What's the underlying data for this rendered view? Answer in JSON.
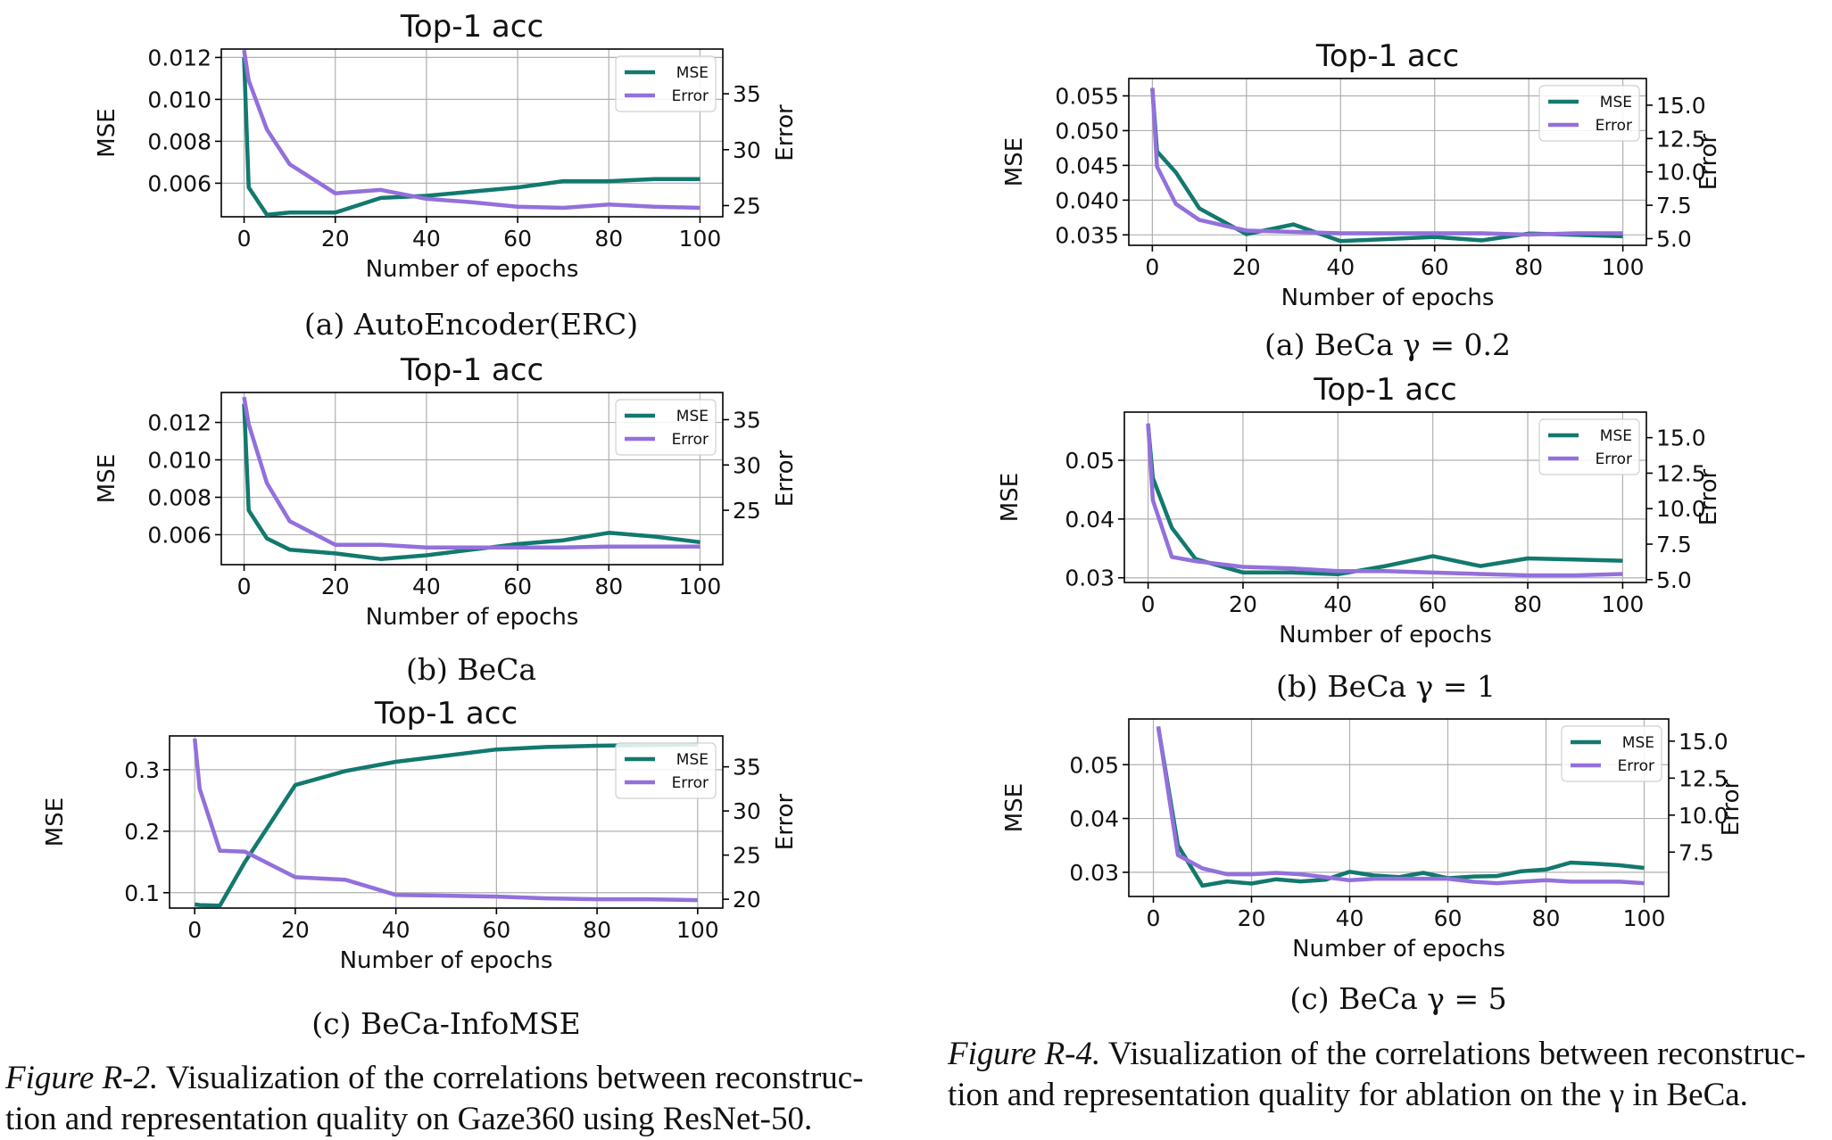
{
  "colors": {
    "mse": "#12796e",
    "error": "#9370db",
    "grid": "#b0b0b0",
    "axis": "#000000"
  },
  "figures": [
    {
      "label": "Figure R-2.",
      "text_line1": "Visualization of the correlations between reconstruc-",
      "text_line2": "tion and representation quality on Gaze360 using ResNet-50."
    },
    {
      "label": "Figure R-4.",
      "text_line1": "Visualization of the correlations between reconstruc-",
      "text_line2": "tion and representation quality for ablation on the γ in BeCa."
    }
  ],
  "chart_data": [
    {
      "type": "line",
      "caption": "(a) AutoEncoder(ERC)",
      "title": "Top-1 acc",
      "xlabel": "Number of epochs",
      "ylabel": "MSE",
      "y2label": "Error",
      "xlim": [
        -5,
        105
      ],
      "ylim": [
        0.0044,
        0.0124
      ],
      "y2lim": [
        24,
        39
      ],
      "xticks": [
        0,
        20,
        40,
        60,
        80,
        100
      ],
      "yticks": [
        0.006,
        0.008,
        0.01,
        0.012
      ],
      "ytick_labels": [
        "0.006",
        "0.008",
        "0.010",
        "0.012"
      ],
      "y2ticks": [
        25,
        30,
        35
      ],
      "y2tick_labels": [
        "25",
        "30",
        "35"
      ],
      "legend": "top-right",
      "grid": true,
      "series": [
        {
          "name": "MSE",
          "axis": "left",
          "x": [
            0,
            1,
            5,
            10,
            20,
            30,
            40,
            50,
            60,
            70,
            80,
            90,
            100
          ],
          "y": [
            0.012,
            0.0058,
            0.0045,
            0.0046,
            0.0046,
            0.0053,
            0.0054,
            0.0056,
            0.0058,
            0.0061,
            0.0061,
            0.0062,
            0.0062
          ]
        },
        {
          "name": "Error",
          "axis": "right",
          "x": [
            0,
            1,
            5,
            10,
            20,
            30,
            40,
            50,
            60,
            70,
            80,
            90,
            100
          ],
          "y": [
            38.9,
            36.2,
            31.8,
            28.7,
            26.1,
            26.4,
            25.6,
            25.3,
            24.9,
            24.8,
            25.1,
            24.9,
            24.8
          ]
        }
      ]
    },
    {
      "type": "line",
      "caption": "(b) BeCa",
      "title": "Top-1 acc",
      "xlabel": "Number of epochs",
      "ylabel": "MSE",
      "y2label": "Error",
      "xlim": [
        -5,
        105
      ],
      "ylim": [
        0.0044,
        0.0136
      ],
      "y2lim": [
        19,
        38
      ],
      "xticks": [
        0,
        20,
        40,
        60,
        80,
        100
      ],
      "yticks": [
        0.006,
        0.008,
        0.01,
        0.012
      ],
      "ytick_labels": [
        "0.006",
        "0.008",
        "0.010",
        "0.012"
      ],
      "y2ticks": [
        25,
        30,
        35
      ],
      "y2tick_labels": [
        "25",
        "30",
        "35"
      ],
      "legend": "top-right",
      "grid": true,
      "series": [
        {
          "name": "MSE",
          "axis": "left",
          "x": [
            0,
            1,
            5,
            10,
            20,
            30,
            40,
            50,
            60,
            70,
            80,
            90,
            100
          ],
          "y": [
            0.013,
            0.0073,
            0.0058,
            0.0052,
            0.005,
            0.0047,
            0.0049,
            0.0052,
            0.0055,
            0.0057,
            0.0061,
            0.0059,
            0.0056
          ]
        },
        {
          "name": "Error",
          "axis": "right",
          "x": [
            0,
            1,
            5,
            10,
            20,
            30,
            40,
            50,
            60,
            70,
            80,
            90,
            100
          ],
          "y": [
            37.5,
            34.5,
            28.0,
            23.8,
            21.2,
            21.2,
            20.9,
            20.9,
            20.9,
            20.9,
            21.0,
            21.0,
            21.0
          ]
        }
      ]
    },
    {
      "type": "line",
      "caption": "(c) BeCa-InfoMSE",
      "title": "Top-1 acc",
      "xlabel": "Number of epochs",
      "ylabel": "MSE",
      "y2label": "Error",
      "xlim": [
        -5,
        105
      ],
      "ylim": [
        0.075,
        0.355
      ],
      "y2lim": [
        19,
        38.5
      ],
      "xticks": [
        0,
        20,
        40,
        60,
        80,
        100
      ],
      "yticks": [
        0.1,
        0.2,
        0.3
      ],
      "ytick_labels": [
        "0.1",
        "0.2",
        "0.3"
      ],
      "y2ticks": [
        20,
        25,
        30,
        35
      ],
      "y2tick_labels": [
        "20",
        "25",
        "30",
        "35"
      ],
      "legend": "top-right",
      "grid": true,
      "series": [
        {
          "name": "MSE",
          "axis": "left",
          "x": [
            0,
            1,
            5,
            10,
            20,
            30,
            40,
            50,
            60,
            70,
            80,
            90,
            100
          ],
          "y": [
            0.081,
            0.08,
            0.079,
            0.15,
            0.275,
            0.298,
            0.313,
            0.323,
            0.333,
            0.337,
            0.339,
            0.34,
            0.341
          ]
        },
        {
          "name": "Error",
          "axis": "right",
          "x": [
            0,
            1,
            5,
            10,
            20,
            30,
            40,
            50,
            60,
            70,
            80,
            90,
            100
          ],
          "y": [
            38.2,
            32.5,
            25.5,
            25.4,
            22.5,
            22.2,
            20.5,
            20.4,
            20.3,
            20.1,
            20.0,
            20.0,
            19.9
          ]
        }
      ]
    },
    {
      "type": "line",
      "caption": "(a) BeCa γ = 0.2",
      "title": "Top-1 acc",
      "xlabel": "Number of epochs",
      "ylabel": "MSE",
      "y2label": "Error",
      "xlim": [
        -5,
        105
      ],
      "ylim": [
        0.0335,
        0.0575
      ],
      "y2lim": [
        4.5,
        17
      ],
      "xticks": [
        0,
        20,
        40,
        60,
        80,
        100
      ],
      "yticks": [
        0.035,
        0.04,
        0.045,
        0.05,
        0.055
      ],
      "ytick_labels": [
        "0.035",
        "0.040",
        "0.045",
        "0.050",
        "0.055"
      ],
      "y2ticks": [
        5.0,
        7.5,
        10.0,
        12.5,
        15.0
      ],
      "y2tick_labels": [
        "5.0",
        "7.5",
        "10.0",
        "12.5",
        "15.0"
      ],
      "legend": "top-right",
      "grid": true,
      "series": [
        {
          "name": "MSE",
          "axis": "left",
          "x": [
            0,
            1,
            5,
            10,
            20,
            30,
            40,
            50,
            60,
            70,
            80,
            90,
            100
          ],
          "y": [
            0.056,
            0.047,
            0.044,
            0.0388,
            0.0351,
            0.0365,
            0.0341,
            0.0344,
            0.0347,
            0.0342,
            0.0352,
            0.035,
            0.0348
          ]
        },
        {
          "name": "Error",
          "axis": "right",
          "x": [
            0,
            1,
            5,
            10,
            20,
            30,
            40,
            50,
            60,
            70,
            80,
            90,
            100
          ],
          "y": [
            16.3,
            10.4,
            7.6,
            6.4,
            5.6,
            5.5,
            5.4,
            5.4,
            5.4,
            5.4,
            5.3,
            5.4,
            5.4
          ]
        }
      ]
    },
    {
      "type": "line",
      "caption": "(b) BeCa γ = 1",
      "title": "Top-1 acc",
      "xlabel": "Number of epochs",
      "ylabel": "MSE",
      "y2label": "Error",
      "xlim": [
        -5,
        105
      ],
      "ylim": [
        0.0292,
        0.0582
      ],
      "y2lim": [
        4.8,
        16.8
      ],
      "xticks": [
        0,
        20,
        40,
        60,
        80,
        100
      ],
      "yticks": [
        0.03,
        0.04,
        0.05
      ],
      "ytick_labels": [
        "0.03",
        "0.04",
        "0.05"
      ],
      "y2ticks": [
        5.0,
        7.5,
        10.0,
        12.5,
        15.0
      ],
      "y2tick_labels": [
        "5.0",
        "7.5",
        "10.0",
        "12.5",
        "15.0"
      ],
      "legend": "top-right",
      "grid": true,
      "series": [
        {
          "name": "MSE",
          "axis": "left",
          "x": [
            0,
            1,
            5,
            10,
            20,
            30,
            40,
            50,
            60,
            70,
            80,
            90,
            100
          ],
          "y": [
            0.056,
            0.047,
            0.0385,
            0.0332,
            0.0309,
            0.0309,
            0.0306,
            0.032,
            0.0337,
            0.032,
            0.0333,
            0.0331,
            0.0329
          ]
        },
        {
          "name": "Error",
          "axis": "right",
          "x": [
            0,
            1,
            5,
            10,
            20,
            30,
            40,
            50,
            60,
            70,
            80,
            90,
            100
          ],
          "y": [
            16.0,
            10.6,
            6.6,
            6.3,
            5.9,
            5.8,
            5.6,
            5.6,
            5.5,
            5.4,
            5.3,
            5.3,
            5.4
          ]
        }
      ]
    },
    {
      "type": "line",
      "caption": "(c) BeCa γ = 5",
      "title": "",
      "xlabel": "Number of epochs",
      "ylabel": "MSE",
      "y2label": "Error",
      "xlim": [
        -5,
        105
      ],
      "ylim": [
        0.0255,
        0.0585
      ],
      "y2lim": [
        4.5,
        16.5
      ],
      "xticks": [
        0,
        20,
        40,
        60,
        80,
        100
      ],
      "yticks": [
        0.03,
        0.04,
        0.05
      ],
      "ytick_labels": [
        "0.03",
        "0.04",
        "0.05"
      ],
      "y2ticks": [
        7.5,
        10.0,
        12.5,
        15.0
      ],
      "y2tick_labels": [
        "7.5",
        "10.0",
        "12.5",
        "15.0"
      ],
      "legend": "top-right",
      "grid": true,
      "series": [
        {
          "name": "MSE",
          "axis": "left",
          "x": [
            1,
            5,
            10,
            15,
            20,
            25,
            30,
            35,
            40,
            45,
            50,
            55,
            60,
            65,
            70,
            75,
            80,
            85,
            90,
            95,
            100
          ],
          "y": [
            0.057,
            0.035,
            0.0275,
            0.0283,
            0.0279,
            0.0287,
            0.0283,
            0.0286,
            0.0301,
            0.0294,
            0.0291,
            0.0299,
            0.0289,
            0.0292,
            0.0293,
            0.0302,
            0.0305,
            0.0318,
            0.0316,
            0.0313,
            0.0308
          ]
        },
        {
          "name": "Error",
          "axis": "right",
          "x": [
            1,
            5,
            10,
            15,
            20,
            25,
            30,
            35,
            40,
            45,
            50,
            55,
            60,
            65,
            70,
            75,
            80,
            85,
            90,
            95,
            100
          ],
          "y": [
            16.0,
            7.3,
            6.4,
            6.0,
            6.0,
            6.1,
            6.0,
            5.8,
            5.6,
            5.7,
            5.7,
            5.7,
            5.7,
            5.5,
            5.4,
            5.5,
            5.6,
            5.5,
            5.5,
            5.5,
            5.4
          ]
        }
      ]
    }
  ]
}
